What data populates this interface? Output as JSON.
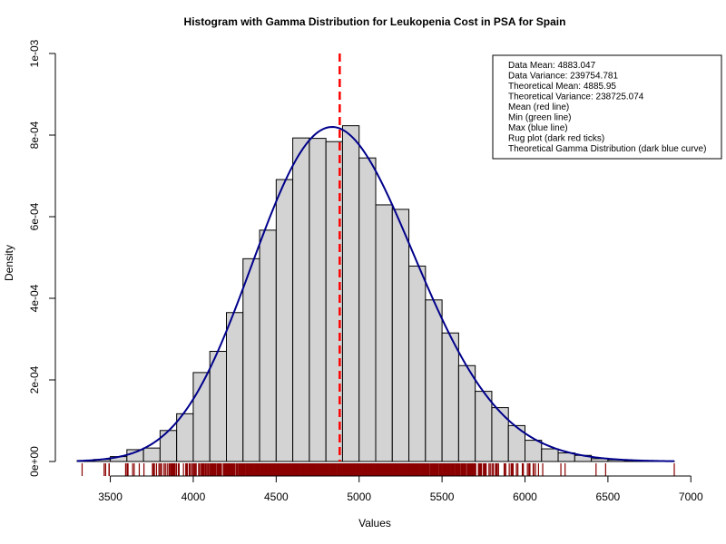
{
  "chart_data": {
    "type": "bar",
    "title": "Histogram with Gamma Distribution for Leukopenia Cost in PSA for Spain",
    "xlabel": "Values",
    "ylabel": "Density",
    "xlim": [
      3300,
      6900
    ],
    "ylim": [
      0,
      0.001
    ],
    "x_ticks": [
      3500,
      4000,
      4500,
      5000,
      5500,
      6000,
      6500,
      7000
    ],
    "x_tick_labels": [
      "3500",
      "4000",
      "4500",
      "5000",
      "5500",
      "6000",
      "6500",
      "7000"
    ],
    "y_ticks": [
      0,
      0.0002,
      0.0004,
      0.0006,
      0.0008,
      0.001
    ],
    "y_tick_labels": [
      "0e+00",
      "2e-04",
      "4e-04",
      "6e-04",
      "8e-04",
      "1e-03"
    ],
    "bin_width": 100,
    "bins_start": [
      3300,
      3400,
      3500,
      3600,
      3700,
      3800,
      3900,
      4000,
      4100,
      4200,
      4300,
      4400,
      4500,
      4600,
      4700,
      4800,
      4900,
      5000,
      5100,
      5200,
      5300,
      5400,
      5500,
      5600,
      5700,
      5800,
      5900,
      6000,
      6100,
      6200,
      6300,
      6400,
      6500,
      6600,
      6700,
      6800
    ],
    "density": [
      2e-06,
      5e-06,
      1.2e-05,
      2.9e-05,
      3.3e-05,
      7.6e-05,
      0.000117,
      0.000218,
      0.00027,
      0.000365,
      0.000497,
      0.000567,
      0.000691,
      0.000793,
      0.000792,
      0.000784,
      0.000823,
      0.000744,
      0.000629,
      0.000618,
      0.000479,
      0.000396,
      0.000315,
      0.000235,
      0.000172,
      0.000132,
      8.8e-05,
      5.2e-05,
      3.1e-05,
      2.1e-05,
      1.5e-05,
      7e-06,
      4e-06,
      2e-06,
      1e-06,
      1e-06
    ],
    "gamma_curve": {
      "mean": 4885.95,
      "variance": 238725.074,
      "color": "#00008b"
    },
    "mean_line": {
      "value": 4883.047,
      "color": "#ff0000"
    },
    "rug": {
      "color": "#8b0000",
      "min": 3330,
      "max": 6900
    },
    "legend": {
      "position": "top-right",
      "entries": [
        "Data Mean:  4883.047",
        "Data Variance:  239754.781",
        "Theoretical Mean:  4885.95",
        "Theoretical Variance:  238725.074",
        "Mean (red line)",
        "Min (green line)",
        "Max (blue line)",
        "Rug plot (dark red ticks)",
        "Theoretical Gamma Distribution (dark blue curve)"
      ]
    },
    "colors": {
      "bar_fill": "#d3d3d3",
      "bar_stroke": "#000000"
    }
  }
}
